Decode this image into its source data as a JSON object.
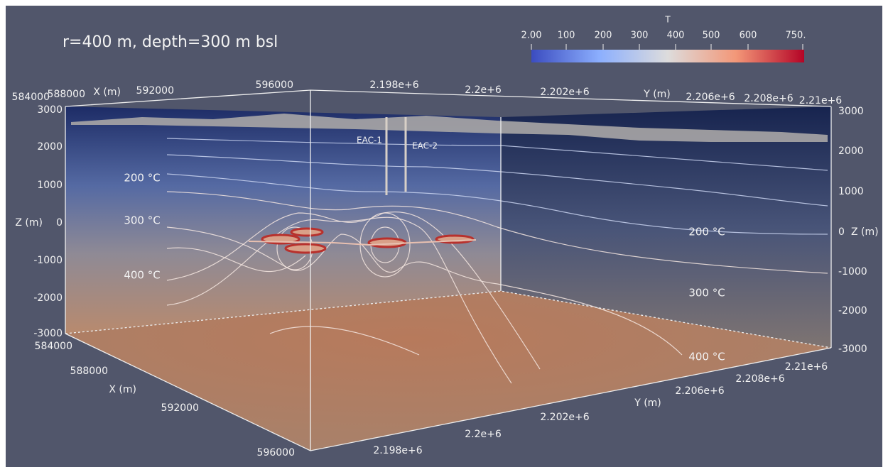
{
  "title": "r=400 m, depth=300 m bsl",
  "colorbar": {
    "title": "T",
    "labels": [
      "2.00",
      "100",
      "200",
      "300",
      "400",
      "500",
      "600",
      "750."
    ]
  },
  "axes": {
    "top_x": [
      "584000",
      "588000",
      "X (m)",
      "592000",
      "596000"
    ],
    "top_y": [
      "2.198e+6",
      "2.2e+6",
      "2.202e+6",
      "Y (m)",
      "2.206e+6",
      "2.208e+6",
      "2.21e+6"
    ],
    "left_z": [
      "3000",
      "2000",
      "1000",
      "Z (m)",
      "0",
      "-1000",
      "-2000",
      "-3000"
    ],
    "right_z": [
      "3000",
      "2000",
      "1000",
      "0",
      "Z (m)",
      "-1000",
      "-2000",
      "-3000"
    ],
    "bottom_x": [
      "584000",
      "588000",
      "X (m)",
      "592000",
      "596000"
    ],
    "bottom_y": [
      "2.198e+6",
      "2.2e+6",
      "2.202e+6",
      "Y (m)",
      "2.206e+6",
      "2.208e+6",
      "2.21e+6"
    ]
  },
  "isotherms": {
    "left": [
      "200 °C",
      "300 °C",
      "400 °C"
    ],
    "right": [
      "200 °C",
      "300 °C",
      "400 °C"
    ]
  },
  "wells": [
    "EAC-1",
    "EAC-2"
  ]
}
